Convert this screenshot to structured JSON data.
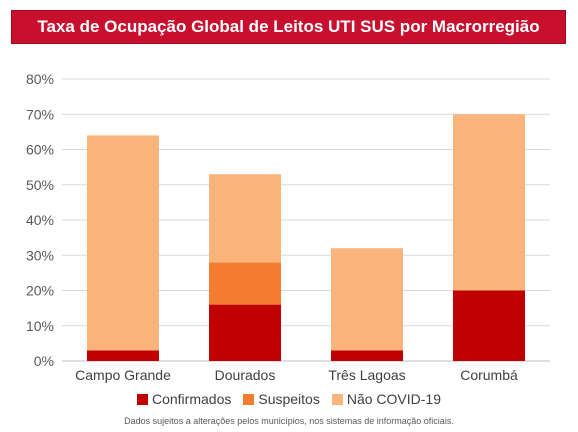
{
  "chart_data": {
    "type": "bar",
    "stacked": true,
    "title": "Taxa de Ocupação Global de Leitos UTI SUS por Macrorregião",
    "categories": [
      "Campo Grande",
      "Dourados",
      "Três Lagoas",
      "Corumbá"
    ],
    "series": [
      {
        "name": "Confirmados",
        "color": "#c00000",
        "values": [
          3,
          16,
          3,
          20
        ]
      },
      {
        "name": "Suspeitos",
        "color": "#f47c30",
        "values": [
          0,
          12,
          0,
          0
        ]
      },
      {
        "name": "Não COVID-19",
        "color": "#fbb47c",
        "values": [
          61,
          25,
          29,
          50
        ]
      }
    ],
    "ylim": [
      0,
      80
    ],
    "yticks": [
      "0%",
      "10%",
      "20%",
      "30%",
      "40%",
      "50%",
      "60%",
      "70%",
      "80%"
    ],
    "grid": true,
    "legend_position": "bottom",
    "footnote": "Dados sujeitos a alterações pelos municípios, nos sistemas de informação oficiais."
  }
}
